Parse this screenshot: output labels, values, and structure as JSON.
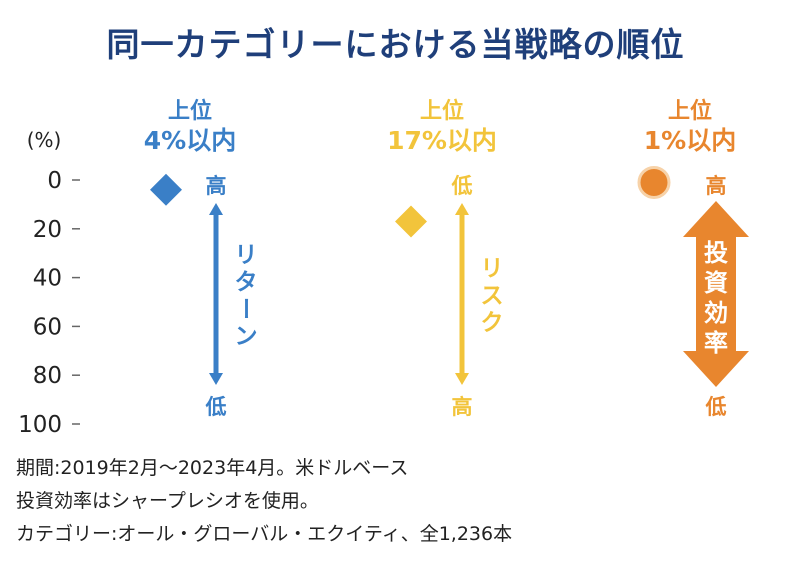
{
  "colors": {
    "title": "#1f3f7a",
    "blue": "#3a7fc7",
    "yellow": "#f2c43b",
    "orange": "#e8862e",
    "axis_text": "#222222"
  },
  "chart_data": {
    "type": "scatter",
    "title": "同一カテゴリーにおける当戦略の順位",
    "ylabel": "(%)",
    "ylim": [
      0,
      100
    ],
    "y_inverted": true,
    "yticks": [
      "0",
      "20",
      "40",
      "60",
      "80",
      "100"
    ],
    "grid": false,
    "series": [
      {
        "name": "リターン",
        "rank_label_line1": "上位",
        "rank_label_line2": "4%以内",
        "value": 4,
        "marker": "diamond",
        "color": "#3a7fc7",
        "scale_top": "高",
        "scale_bottom": "低",
        "scale_label": "リターン",
        "style": "thin"
      },
      {
        "name": "リスク",
        "rank_label_line1": "上位",
        "rank_label_line2": "17%以内",
        "value": 17,
        "marker": "diamond",
        "color": "#f2c43b",
        "scale_top": "低",
        "scale_bottom": "高",
        "scale_label": "リスク",
        "style": "thin"
      },
      {
        "name": "投資効率",
        "rank_label_line1": "上位",
        "rank_label_line2": "1%以内",
        "value": 1,
        "marker": "circle",
        "color": "#e8862e",
        "scale_top": "高",
        "scale_bottom": "低",
        "scale_label": "投資効率",
        "style": "thick"
      }
    ]
  },
  "notes": [
    "期間:2019年2月～2023年4月。米ドルベース",
    "投資効率はシャープレシオを使用。",
    "カテゴリー:オール・グローバル・エクイティ、全1,236本"
  ]
}
